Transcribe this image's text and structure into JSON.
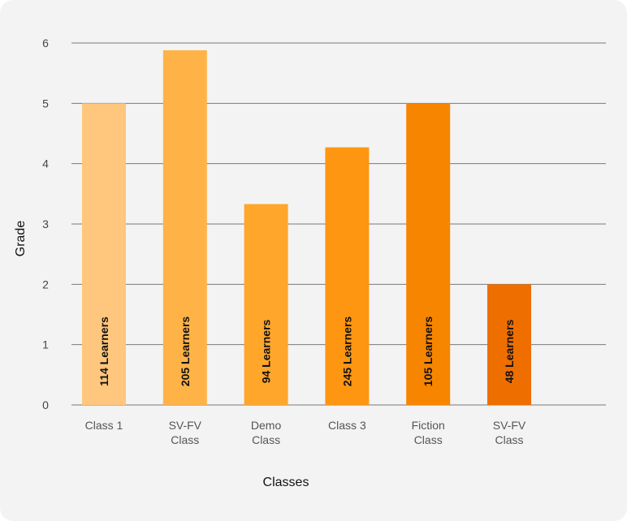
{
  "chart_data": {
    "type": "bar",
    "xlabel": "Classes",
    "ylabel": "Grade",
    "ylim": [
      0,
      6
    ],
    "yticks": [
      0,
      1,
      2,
      3,
      4,
      5,
      6
    ],
    "grid": true,
    "categories": [
      [
        "Class 1"
      ],
      [
        "SV-FV",
        "Class"
      ],
      [
        "Demo",
        "Class"
      ],
      [
        "Class 3"
      ],
      [
        "Fiction",
        "Class"
      ],
      [
        "SV-FV",
        "Class"
      ]
    ],
    "values": [
      5.0,
      5.88,
      3.33,
      4.27,
      5.0,
      2.0
    ],
    "bar_labels": [
      "114 Learners",
      "205 Learners",
      "94 Learners",
      "245 Learners",
      "105 Learners",
      "48 Learners"
    ],
    "colors": [
      "#FFC77D",
      "#FFB347",
      "#FFA62B",
      "#FF9611",
      "#F78500",
      "#EE6E00"
    ]
  }
}
